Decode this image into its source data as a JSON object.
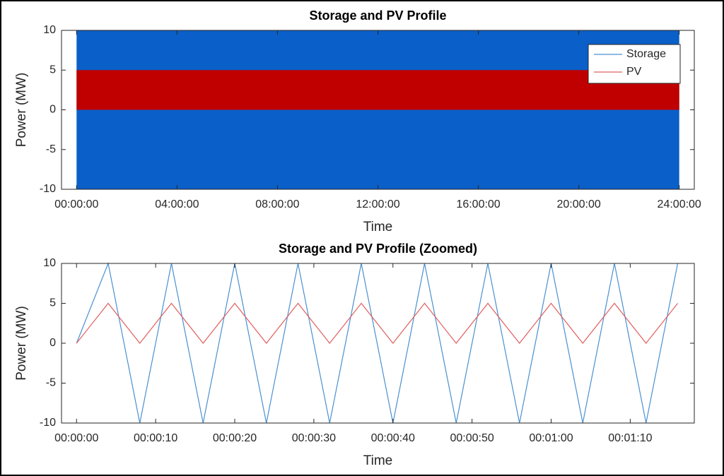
{
  "chart_data": [
    {
      "type": "range",
      "title": "Storage and PV Profile",
      "xlabel": "Time",
      "ylabel": "Power (MW)",
      "x": [
        0,
        24
      ],
      "series": [
        {
          "name": "Storage",
          "color": "#0a5fc8",
          "legend_color": "#4a90d0",
          "low": [
            -10,
            -10
          ],
          "high": [
            10,
            10
          ]
        },
        {
          "name": "PV",
          "color": "#c00000",
          "legend_color": "#e06060",
          "low": [
            0,
            0
          ],
          "high": [
            5,
            5
          ]
        }
      ],
      "xlim": [
        -0.6,
        24.6
      ],
      "xticks": [
        {
          "value": 0,
          "label": "00:00:00"
        },
        {
          "value": 4,
          "label": "04:00:00"
        },
        {
          "value": 8,
          "label": "08:00:00"
        },
        {
          "value": 12,
          "label": "12:00:00"
        },
        {
          "value": 16,
          "label": "16:00:00"
        },
        {
          "value": 20,
          "label": "20:00:00"
        },
        {
          "value": 24,
          "label": "24:00:00"
        }
      ],
      "ylim": [
        -10,
        10
      ],
      "yticks": [
        -10,
        -5,
        0,
        5,
        10
      ],
      "legend": "northeast"
    },
    {
      "type": "line",
      "title": "Storage and PV Profile (Zoomed)",
      "xlabel": "Time",
      "ylabel": "Power (MW)",
      "x": [
        0,
        4,
        8,
        12,
        16,
        20,
        24,
        28,
        32,
        36,
        40,
        44,
        48,
        52,
        56,
        60,
        64,
        68,
        72,
        76
      ],
      "series": [
        {
          "name": "Storage",
          "color": "#4a90d0",
          "values": [
            0,
            10,
            -10,
            10,
            -10,
            10,
            -10,
            10,
            -10,
            10,
            -10,
            10,
            -10,
            10,
            -10,
            10,
            -10,
            10,
            -10,
            10
          ]
        },
        {
          "name": "PV",
          "color": "#e06060",
          "values": [
            0,
            5,
            0,
            5,
            0,
            5,
            0,
            5,
            0,
            5,
            0,
            5,
            0,
            5,
            0,
            5,
            0,
            5,
            0,
            5
          ]
        }
      ],
      "xlim": [
        -1.9,
        78.1
      ],
      "xticks": [
        {
          "value": 0,
          "label": "00:00:00"
        },
        {
          "value": 10,
          "label": "00:00:10"
        },
        {
          "value": 20,
          "label": "00:00:20"
        },
        {
          "value": 30,
          "label": "00:00:30"
        },
        {
          "value": 40,
          "label": "00:00:40"
        },
        {
          "value": 50,
          "label": "00:00:50"
        },
        {
          "value": 60,
          "label": "00:01:00"
        },
        {
          "value": 70,
          "label": "00:01:10"
        }
      ],
      "ylim": [
        -10,
        10
      ],
      "yticks": [
        -10,
        -5,
        0,
        5,
        10
      ]
    }
  ]
}
